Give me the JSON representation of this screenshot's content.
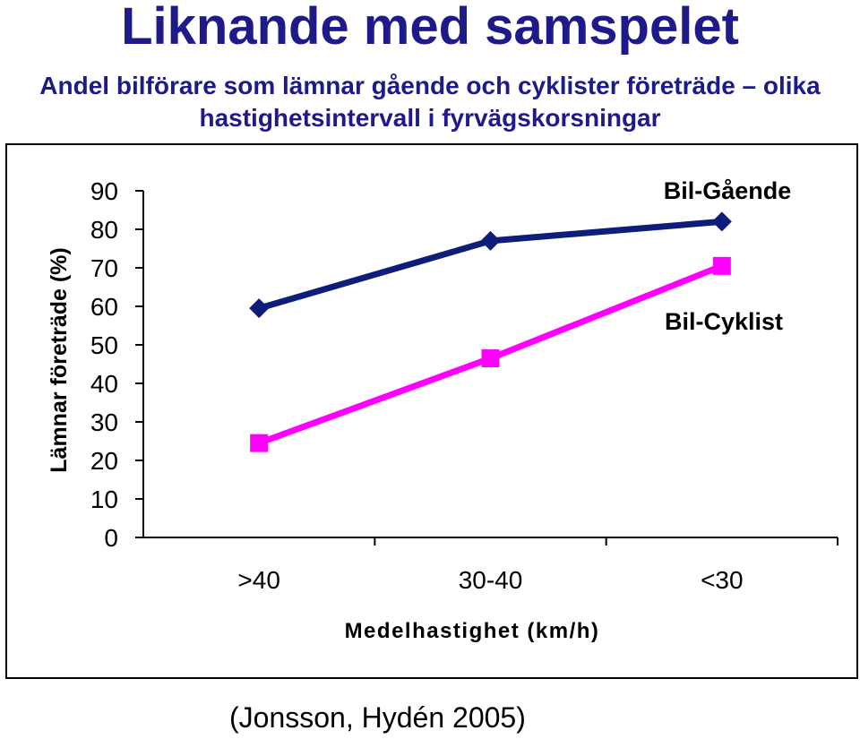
{
  "page": {
    "title": "Liknande med samspelet",
    "subtitle_line1": "Andel bilförare som lämnar gående och cyklister företräde – olika",
    "subtitle_line2": "hastighetsintervall i fyrvägskorsningar",
    "source": "(Jonsson, Hydén 2005)"
  },
  "chart_data": {
    "type": "line",
    "title": "",
    "xlabel": "Medelhastighet (km/h)",
    "ylabel": "Lämnar företräde (%)",
    "categories": [
      ">40",
      "30-40",
      "<30"
    ],
    "ylim": [
      0,
      90
    ],
    "yticks": [
      "0",
      "10",
      "20",
      "30",
      "40",
      "50",
      "60",
      "70",
      "80",
      "90"
    ],
    "grid": false,
    "series": [
      {
        "name": "Bil-Gående",
        "values": [
          59.5,
          77,
          82
        ],
        "color": "#0f1d7a",
        "marker": "diamond"
      },
      {
        "name": "Bil-Cyklist",
        "values": [
          24.5,
          46.5,
          70.5
        ],
        "color": "#ff00ff",
        "marker": "square"
      }
    ]
  }
}
